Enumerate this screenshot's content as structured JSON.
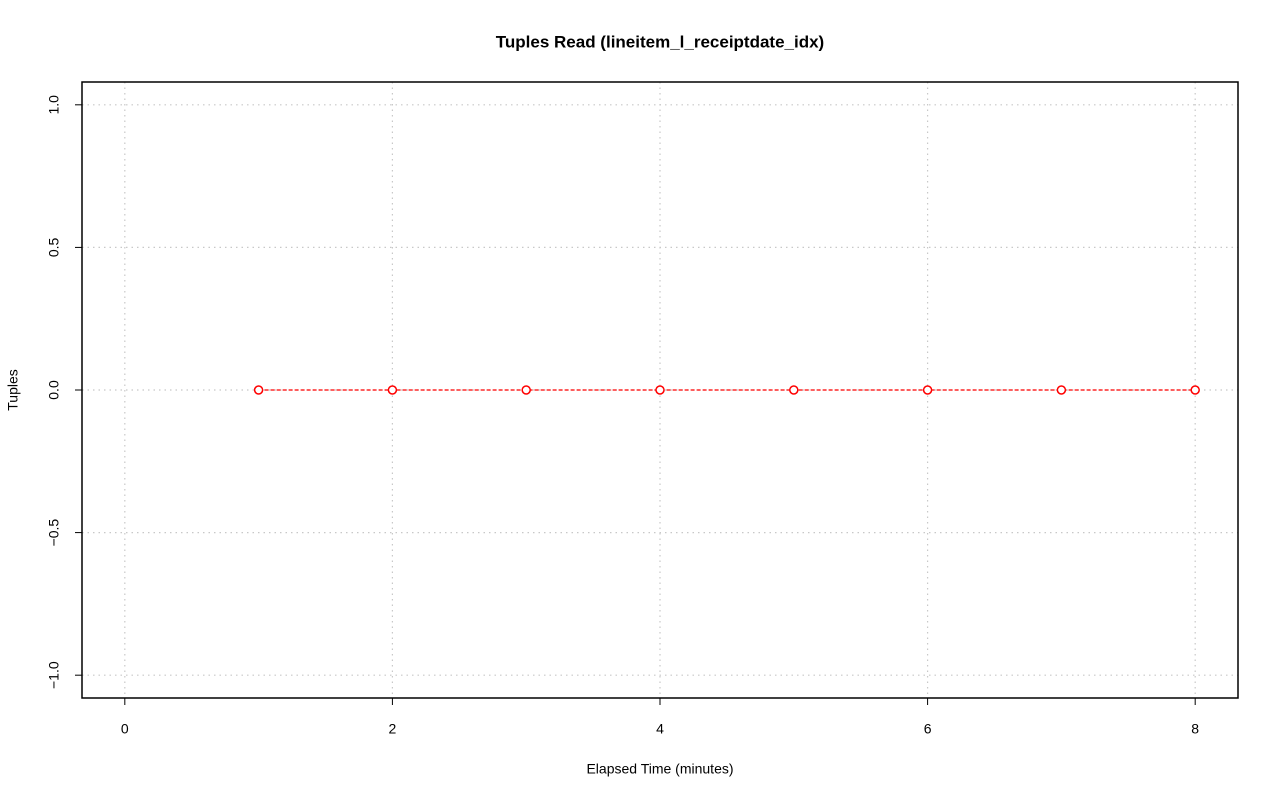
{
  "chart_data": {
    "type": "line",
    "title": "Tuples Read (lineitem_l_receiptdate_idx)",
    "xlabel": "Elapsed Time (minutes)",
    "ylabel": "Tuples",
    "x": [
      1,
      2,
      3,
      4,
      5,
      6,
      7,
      8
    ],
    "series": [
      {
        "color": "#ff0000",
        "line_style": "dashed",
        "marker": "open-circle",
        "values": [
          0,
          0,
          0,
          0,
          0,
          0,
          0,
          0
        ]
      }
    ],
    "xlim": [
      -0.32,
      8.32
    ],
    "xticks": [
      0,
      2,
      4,
      6,
      8
    ],
    "ylim": [
      -1.08,
      1.08
    ],
    "yticks": [
      {
        "value": -1.0,
        "label": "−1.0"
      },
      {
        "value": -0.5,
        "label": "−0.5"
      },
      {
        "value": 0,
        "label": "0.0"
      },
      0.5,
      {
        "value": 1.0,
        "label": "1.0"
      }
    ],
    "grid": true
  }
}
